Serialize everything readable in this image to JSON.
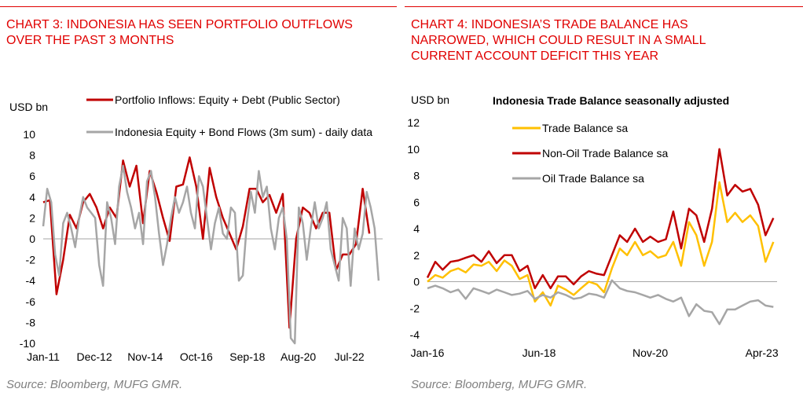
{
  "charts": [
    {
      "title_lines": [
        "CHART 3: INDONESIA HAS SEEN PORTFOLIO OUTFLOWS",
        "OVER THE PAST 3 MONTHS"
      ],
      "source": "Source: Bloomberg, MUFG GMR."
    },
    {
      "title_lines": [
        "CHART 4: INDONESIA’S TRADE BALANCE HAS",
        "NARROWED, WHICH COULD RESULT IN A SMALL",
        "CURRENT ACCOUNT DEFICIT THIS YEAR"
      ],
      "source": "Source: Bloomberg, MUFG GMR."
    }
  ],
  "chart_data": [
    {
      "type": "line",
      "title": "",
      "ylabel": "USD bn",
      "ylim": [
        -10,
        10
      ],
      "yticks": [
        "10",
        "8",
        "6",
        "4",
        "2",
        "0",
        "-2",
        "-4",
        "-6",
        "-8",
        "-10"
      ],
      "x_ticklabels": [
        "Jan-11",
        "Dec-12",
        "Nov-14",
        "Oct-16",
        "Sep-18",
        "Aug-20",
        "Jul-22"
      ],
      "x_tick_dates": [
        2011.0,
        2012.92,
        2014.83,
        2016.75,
        2018.67,
        2020.58,
        2022.5
      ],
      "xlim": [
        2011.0,
        2023.75
      ],
      "legend_position": "top",
      "grid": false,
      "series": [
        {
          "name": "Portfolio Inflows: Equity + Debt (Public Sector)",
          "color": "#c00000",
          "x": [
            2011.0,
            2011.25,
            2011.5,
            2011.75,
            2012.0,
            2012.25,
            2012.5,
            2012.75,
            2013.0,
            2013.25,
            2013.5,
            2013.75,
            2014.0,
            2014.25,
            2014.5,
            2014.75,
            2015.0,
            2015.25,
            2015.5,
            2015.75,
            2016.0,
            2016.25,
            2016.5,
            2016.75,
            2017.0,
            2017.25,
            2017.5,
            2017.75,
            2018.0,
            2018.25,
            2018.5,
            2018.75,
            2019.0,
            2019.25,
            2019.5,
            2019.75,
            2020.0,
            2020.25,
            2020.5,
            2020.75,
            2021.0,
            2021.25,
            2021.5,
            2021.75,
            2022.0,
            2022.25,
            2022.5,
            2022.75,
            2023.0,
            2023.25
          ],
          "y": [
            3.5,
            3.7,
            -5.3,
            -2.0,
            2.3,
            1.0,
            3.5,
            4.3,
            3.0,
            1.0,
            3.0,
            2.0,
            7.5,
            5.0,
            7.0,
            1.5,
            6.5,
            4.5,
            2.0,
            -0.2,
            5.0,
            5.2,
            7.8,
            5.0,
            0.0,
            6.8,
            4.0,
            2.0,
            0.5,
            -1.0,
            1.2,
            4.8,
            4.8,
            3.5,
            4.2,
            2.5,
            4.3,
            -8.5,
            0.0,
            3.0,
            2.5,
            1.0,
            2.5,
            2.5,
            -3.0,
            -1.5,
            -1.5,
            -0.5,
            4.8,
            0.5
          ]
        },
        {
          "name": "Indonesia Equity + Bond Flows (3m sum) - daily data",
          "color": "#a6a6a6",
          "x": [
            2011.0,
            2011.15,
            2011.3,
            2011.45,
            2011.6,
            2011.75,
            2011.9,
            2012.05,
            2012.2,
            2012.35,
            2012.5,
            2012.65,
            2012.8,
            2012.95,
            2013.1,
            2013.25,
            2013.4,
            2013.55,
            2013.7,
            2013.85,
            2014.0,
            2014.15,
            2014.3,
            2014.45,
            2014.6,
            2014.75,
            2014.9,
            2015.05,
            2015.2,
            2015.35,
            2015.5,
            2015.65,
            2015.8,
            2015.95,
            2016.1,
            2016.25,
            2016.4,
            2016.55,
            2016.7,
            2016.85,
            2017.0,
            2017.15,
            2017.3,
            2017.45,
            2017.6,
            2017.75,
            2017.9,
            2018.05,
            2018.2,
            2018.35,
            2018.5,
            2018.65,
            2018.8,
            2018.95,
            2019.1,
            2019.25,
            2019.4,
            2019.55,
            2019.7,
            2019.85,
            2020.0,
            2020.15,
            2020.3,
            2020.45,
            2020.6,
            2020.75,
            2020.9,
            2021.05,
            2021.2,
            2021.35,
            2021.5,
            2021.65,
            2021.8,
            2021.95,
            2022.1,
            2022.25,
            2022.4,
            2022.55,
            2022.7,
            2022.85,
            2023.0,
            2023.15,
            2023.3,
            2023.45,
            2023.6
          ],
          "y": [
            1.2,
            4.8,
            3.5,
            -1.5,
            -3.5,
            1.5,
            2.5,
            1.0,
            -0.8,
            2.0,
            4.0,
            3.0,
            2.5,
            2.0,
            -2.5,
            -4.5,
            3.5,
            2.0,
            -0.5,
            5.0,
            7.0,
            4.5,
            3.0,
            1.0,
            2.5,
            -0.5,
            5.5,
            6.5,
            4.0,
            0.5,
            -2.5,
            -0.5,
            2.0,
            4.0,
            2.5,
            3.5,
            5.0,
            2.5,
            1.0,
            6.0,
            5.0,
            2.0,
            -1.0,
            1.5,
            3.0,
            0.5,
            0.0,
            3.0,
            2.5,
            -4.0,
            -3.5,
            1.5,
            4.5,
            2.5,
            6.5,
            4.0,
            5.0,
            1.0,
            -1.0,
            2.0,
            3.0,
            0.0,
            -9.5,
            -10.0,
            3.0,
            1.5,
            -2.0,
            1.0,
            3.5,
            1.0,
            2.0,
            3.5,
            -1.0,
            -2.5,
            -4.0,
            2.0,
            1.0,
            -4.5,
            1.0,
            -1.0,
            0.5,
            4.5,
            3.0,
            1.0,
            -4.0
          ]
        }
      ]
    },
    {
      "type": "line",
      "title": "Indonesia Trade Balance seasonally adjusted",
      "ylabel": "USD bn",
      "ylim": [
        -4,
        12
      ],
      "yticks": [
        "12",
        "10",
        "8",
        "6",
        "4",
        "2",
        "0",
        "-2",
        "-4"
      ],
      "x_ticklabels": [
        "Jan-16",
        "Jun-18",
        "Nov-20",
        "Apr-23"
      ],
      "x_tick_dates": [
        2016.0,
        2018.42,
        2020.83,
        2023.25
      ],
      "xlim": [
        2016.0,
        2023.58
      ],
      "legend_position": "top-left",
      "grid": false,
      "series": [
        {
          "name": "Trade Balance sa",
          "color": "#ffc000",
          "x": [
            2016.0,
            2016.17,
            2016.33,
            2016.5,
            2016.67,
            2016.83,
            2017.0,
            2017.17,
            2017.33,
            2017.5,
            2017.67,
            2017.83,
            2018.0,
            2018.17,
            2018.33,
            2018.5,
            2018.67,
            2018.83,
            2019.0,
            2019.17,
            2019.33,
            2019.5,
            2019.67,
            2019.83,
            2020.0,
            2020.17,
            2020.33,
            2020.5,
            2020.67,
            2020.83,
            2021.0,
            2021.17,
            2021.33,
            2021.5,
            2021.67,
            2021.83,
            2022.0,
            2022.17,
            2022.33,
            2022.5,
            2022.67,
            2022.83,
            2023.0,
            2023.17,
            2023.33,
            2023.5
          ],
          "y": [
            0.0,
            0.5,
            0.3,
            0.8,
            1.0,
            0.7,
            1.3,
            1.2,
            1.5,
            0.8,
            1.6,
            1.2,
            0.2,
            0.5,
            -1.5,
            -0.8,
            -1.8,
            -0.3,
            -0.6,
            -1.0,
            -0.5,
            0.0,
            -0.2,
            -0.8,
            1.0,
            2.5,
            2.0,
            3.0,
            2.0,
            2.3,
            1.8,
            2.0,
            3.0,
            1.2,
            4.5,
            3.5,
            1.2,
            3.0,
            7.5,
            4.5,
            5.2,
            4.5,
            5.0,
            4.2,
            1.5,
            3.0
          ]
        },
        {
          "name": "Non-Oil Trade Balance sa",
          "color": "#c00000",
          "x": [
            2016.0,
            2016.17,
            2016.33,
            2016.5,
            2016.67,
            2016.83,
            2017.0,
            2017.17,
            2017.33,
            2017.5,
            2017.67,
            2017.83,
            2018.0,
            2018.17,
            2018.33,
            2018.5,
            2018.67,
            2018.83,
            2019.0,
            2019.17,
            2019.33,
            2019.5,
            2019.67,
            2019.83,
            2020.0,
            2020.17,
            2020.33,
            2020.5,
            2020.67,
            2020.83,
            2021.0,
            2021.17,
            2021.33,
            2021.5,
            2021.67,
            2021.83,
            2022.0,
            2022.17,
            2022.33,
            2022.5,
            2022.67,
            2022.83,
            2023.0,
            2023.17,
            2023.33,
            2023.5
          ],
          "y": [
            0.3,
            1.5,
            0.9,
            1.5,
            1.6,
            1.8,
            2.0,
            1.5,
            2.3,
            1.4,
            2.0,
            2.0,
            0.8,
            1.2,
            -0.5,
            0.5,
            -0.5,
            0.4,
            0.4,
            -0.2,
            0.4,
            0.8,
            0.6,
            0.5,
            2.0,
            3.5,
            3.0,
            4.0,
            3.0,
            3.4,
            3.0,
            3.2,
            5.3,
            2.5,
            5.5,
            5.0,
            3.0,
            5.5,
            10.0,
            6.5,
            7.3,
            6.8,
            7.0,
            5.8,
            3.5,
            4.8
          ]
        },
        {
          "name": "Oil Trade Balance sa",
          "color": "#a6a6a6",
          "x": [
            2016.0,
            2016.17,
            2016.33,
            2016.5,
            2016.67,
            2016.83,
            2017.0,
            2017.17,
            2017.33,
            2017.5,
            2017.67,
            2017.83,
            2018.0,
            2018.17,
            2018.33,
            2018.5,
            2018.67,
            2018.83,
            2019.0,
            2019.17,
            2019.33,
            2019.5,
            2019.67,
            2019.83,
            2020.0,
            2020.17,
            2020.33,
            2020.5,
            2020.67,
            2020.83,
            2021.0,
            2021.17,
            2021.33,
            2021.5,
            2021.67,
            2021.83,
            2022.0,
            2022.17,
            2022.33,
            2022.5,
            2022.67,
            2022.83,
            2023.0,
            2023.17,
            2023.33,
            2023.5
          ],
          "y": [
            -0.5,
            -0.3,
            -0.5,
            -0.8,
            -0.6,
            -1.3,
            -0.5,
            -0.7,
            -0.9,
            -0.6,
            -0.8,
            -1.0,
            -0.9,
            -0.7,
            -1.3,
            -1.0,
            -1.2,
            -0.8,
            -1.0,
            -1.3,
            -1.2,
            -0.9,
            -1.0,
            -1.2,
            0.1,
            -0.5,
            -0.7,
            -0.8,
            -1.0,
            -1.2,
            -1.0,
            -1.3,
            -1.5,
            -1.2,
            -2.6,
            -1.7,
            -2.2,
            -2.3,
            -3.2,
            -2.1,
            -2.1,
            -1.8,
            -1.5,
            -1.4,
            -1.8,
            -1.9
          ]
        }
      ]
    }
  ]
}
